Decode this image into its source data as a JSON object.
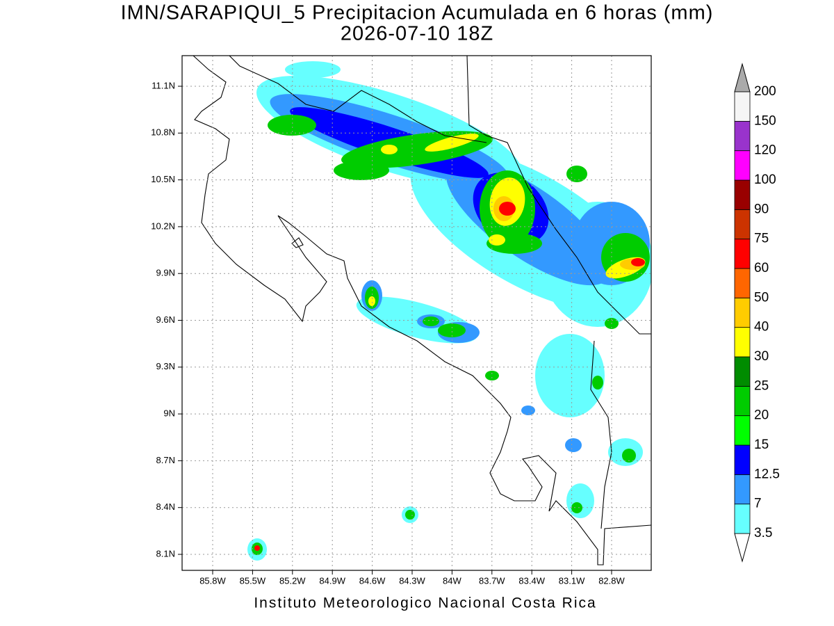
{
  "header": {
    "title": "IMN/SARAPIQUI_5 Precipitacion Acumulada en 6 horas (mm)",
    "subtitle": "2026-07-10 18Z"
  },
  "map": {
    "lat_labels": [
      "11.1N",
      "10.8N",
      "10.5N",
      "10.2N",
      "9.9N",
      "9.6N",
      "9.3N",
      "9N",
      "8.7N",
      "8.4N",
      "8.1N"
    ],
    "lon_labels": [
      "85.8W",
      "85.5W",
      "85.2W",
      "84.9W",
      "84.6W",
      "84.3W",
      "84W",
      "83.7W",
      "83.4W",
      "83.1W",
      "82.8W"
    ]
  },
  "colorbar": {
    "labels": [
      "3.5",
      "7",
      "12.5",
      "15",
      "20",
      "25",
      "30",
      "40",
      "50",
      "60",
      "75",
      "90",
      "100",
      "120",
      "150",
      "200"
    ],
    "colors": [
      "#66ffff",
      "#3399ff",
      "#0000ff",
      "#00ff00",
      "#00cc00",
      "#008c00",
      "#ffff00",
      "#ffcc00",
      "#ff6600",
      "#ff0000",
      "#cc3300",
      "#990000",
      "#ff00ff",
      "#9933cc",
      "#f5f5f5"
    ],
    "below_color": "#ffffff",
    "above_color": "#aaaaaa"
  },
  "footer": {
    "credit": "Instituto Meteorologico Nacional Costa Rica"
  }
}
